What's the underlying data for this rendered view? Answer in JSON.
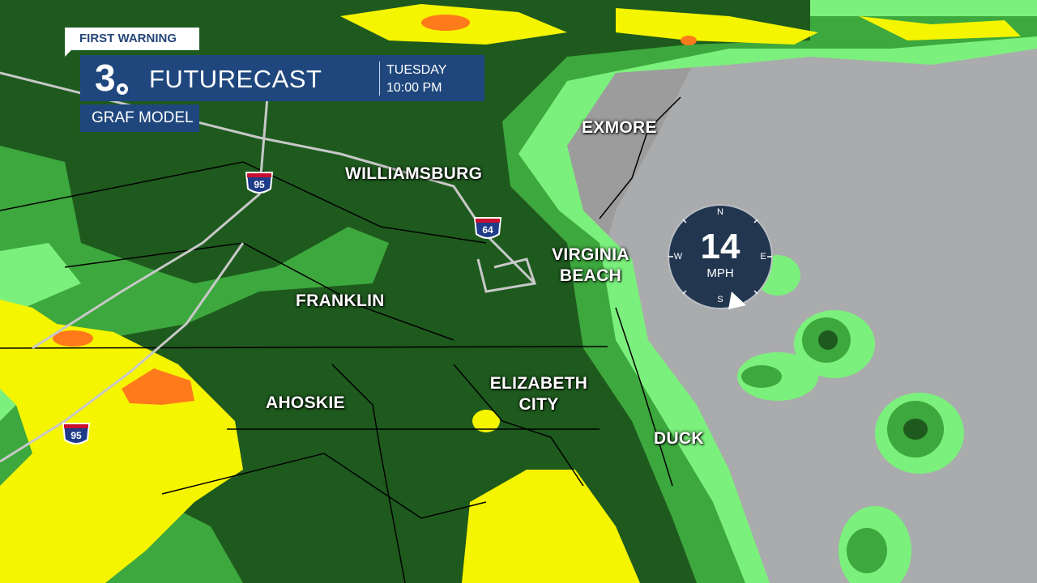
{
  "header": {
    "badge": "FIRST WARNING",
    "station_logo": "3",
    "title": "FUTURECAST",
    "day": "TUESDAY",
    "time": "10:00 PM",
    "model": "GRAF MODEL",
    "accent_color": "#1f477e"
  },
  "cities": [
    {
      "name": "EXMORE"
    },
    {
      "name": "WILLIAMSBURG"
    },
    {
      "name": "VIRGINIA BEACH"
    },
    {
      "name": "FRANKLIN"
    },
    {
      "name": "ELIZABETH CITY"
    },
    {
      "name": "AHOSKIE"
    },
    {
      "name": "DUCK"
    }
  ],
  "interstates": [
    {
      "number": "95"
    },
    {
      "number": "64"
    },
    {
      "number": "95"
    }
  ],
  "wind": {
    "speed": "14",
    "unit": "MPH",
    "directions": [
      "N",
      "E",
      "S",
      "W"
    ],
    "arrow_direction": "SSE"
  },
  "radar_colors": {
    "light_green": "#7cf07c",
    "mid_green": "#3da83d",
    "dark_green": "#1e5a1e",
    "yellow": "#f5f500",
    "orange": "#ff7a1a",
    "land": "#a9abad"
  }
}
